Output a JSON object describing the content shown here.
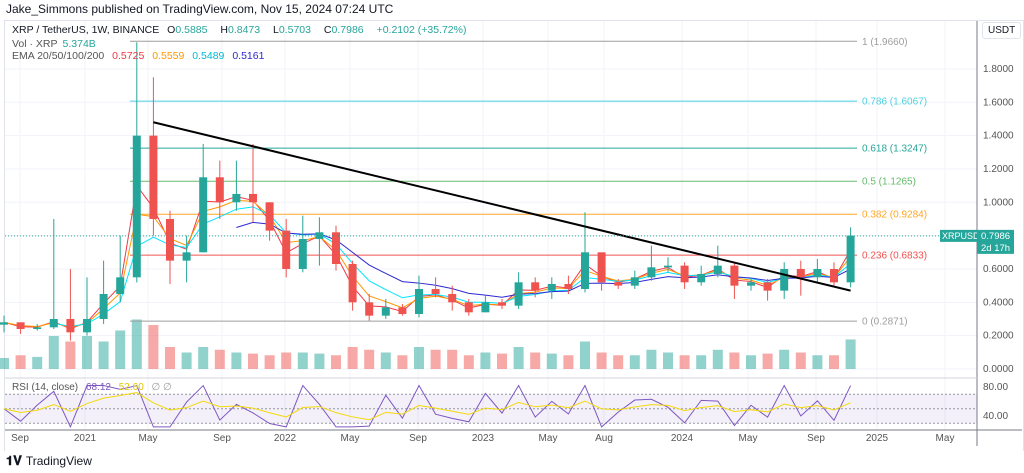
{
  "header": {
    "published": "Jake_Simmons published on TradingView.com, Nov 15, 2024 07:24 UTC"
  },
  "legend": {
    "symbol": "XRP / TetherUS, 1W, BINANCE",
    "o_label": "O",
    "o": "0.5885",
    "h_label": "H",
    "h": "0.8473",
    "l_label": "L",
    "l": "0.5703",
    "c_label": "C",
    "c": "0.7986",
    "change": "+0.2102 (+35.72%)",
    "vol_label": "Vol · XRP",
    "vol": "5.374B",
    "ema_label": "EMA 20/50/100/200",
    "ema": [
      "0.5725",
      "0.5559",
      "0.5489",
      "0.5161"
    ],
    "rsi_label": "RSI (14, close)",
    "rsi": "68.12",
    "rsi_ma": "52.60",
    "rsi_extra": "∅ ∅"
  },
  "colors": {
    "up": "#26a69a",
    "down": "#ef5350",
    "ema": [
      "#f23645",
      "#ff9800",
      "#00e5ff",
      "#2e28d0"
    ],
    "rsi": "#7e57c2",
    "rsi_ma": "#f5d90a"
  },
  "price_axis": {
    "unit": "USDT",
    "ticks": [
      "1.8000",
      "1.6000",
      "1.4000",
      "1.2000",
      "1.0000",
      "0.6000",
      "0.4000",
      "0.2000",
      "0.0000"
    ],
    "last_symbol": "XRPUSDT",
    "last_price": "0.7986",
    "countdown": "2d 17h"
  },
  "rsi_axis": {
    "ticks": [
      "80.00",
      "40.00"
    ]
  },
  "time_axis": [
    "Sep",
    "2021",
    "May",
    "Sep",
    "2022",
    "May",
    "Sep",
    "2023",
    "May",
    "Aug",
    "2024",
    "May",
    "Sep",
    "2025",
    "May"
  ],
  "footer": {
    "brand": "TradingView"
  },
  "chart_data": {
    "type": "candlestick",
    "interval": "1W (approximated monthly)",
    "ylim": [
      0,
      2.0
    ],
    "months": [
      "2020-08",
      "2020-09",
      "2020-10",
      "2020-11",
      "2020-12",
      "2021-01",
      "2021-02",
      "2021-03",
      "2021-04",
      "2021-05",
      "2021-06",
      "2021-07",
      "2021-08",
      "2021-09",
      "2021-10",
      "2021-11",
      "2021-12",
      "2022-01",
      "2022-02",
      "2022-03",
      "2022-04",
      "2022-05",
      "2022-06",
      "2022-07",
      "2022-08",
      "2022-09",
      "2022-10",
      "2022-11",
      "2022-12",
      "2023-01",
      "2023-02",
      "2023-03",
      "2023-04",
      "2023-05",
      "2023-06",
      "2023-07",
      "2023-08",
      "2023-09",
      "2023-10",
      "2023-11",
      "2023-12",
      "2024-01",
      "2024-02",
      "2024-03",
      "2024-04",
      "2024-05",
      "2024-06",
      "2024-07",
      "2024-08",
      "2024-09",
      "2024-10",
      "2024-11"
    ],
    "close": [
      0.28,
      0.24,
      0.25,
      0.3,
      0.22,
      0.3,
      0.45,
      0.55,
      1.4,
      0.9,
      0.65,
      0.7,
      1.15,
      1.0,
      1.05,
      1.0,
      0.83,
      0.6,
      0.78,
      0.82,
      0.63,
      0.4,
      0.32,
      0.37,
      0.33,
      0.48,
      0.45,
      0.4,
      0.34,
      0.4,
      0.38,
      0.52,
      0.47,
      0.51,
      0.48,
      0.7,
      0.52,
      0.5,
      0.55,
      0.61,
      0.62,
      0.52,
      0.57,
      0.62,
      0.5,
      0.52,
      0.47,
      0.6,
      0.55,
      0.6,
      0.52,
      0.8
    ],
    "high": [
      0.32,
      0.28,
      0.27,
      0.9,
      0.6,
      0.55,
      0.65,
      0.8,
      1.96,
      1.75,
      0.95,
      0.8,
      1.35,
      1.25,
      1.25,
      1.35,
      1.0,
      0.9,
      0.92,
      0.91,
      0.86,
      0.65,
      0.45,
      0.42,
      0.39,
      0.56,
      0.55,
      0.5,
      0.42,
      0.44,
      0.42,
      0.58,
      0.55,
      0.55,
      0.56,
      0.94,
      0.66,
      0.54,
      0.59,
      0.74,
      0.67,
      0.64,
      0.62,
      0.74,
      0.64,
      0.55,
      0.54,
      0.64,
      0.65,
      0.66,
      0.64,
      0.85
    ],
    "low": [
      0.22,
      0.21,
      0.23,
      0.24,
      0.17,
      0.2,
      0.27,
      0.4,
      0.52,
      0.8,
      0.51,
      0.52,
      0.7,
      0.9,
      0.95,
      0.88,
      0.77,
      0.55,
      0.58,
      0.62,
      0.59,
      0.35,
      0.29,
      0.3,
      0.32,
      0.31,
      0.43,
      0.35,
      0.32,
      0.34,
      0.36,
      0.36,
      0.43,
      0.42,
      0.45,
      0.46,
      0.47,
      0.48,
      0.48,
      0.53,
      0.58,
      0.48,
      0.5,
      0.55,
      0.42,
      0.47,
      0.41,
      0.42,
      0.44,
      0.52,
      0.5,
      0.49
    ],
    "volume_billion": [
      2,
      2.5,
      2.2,
      6,
      5,
      6,
      5,
      7,
      9,
      8,
      4,
      3,
      4,
      3.5,
      3,
      2.8,
      2.5,
      3,
      3,
      2.8,
      2.5,
      4,
      3.5,
      3,
      2.5,
      4,
      3.5,
      3.5,
      2.5,
      3,
      2.8,
      4,
      3,
      2.8,
      2.5,
      5,
      3,
      2.5,
      2.5,
      3.5,
      3,
      2.5,
      2.5,
      3.5,
      3,
      2.5,
      2.8,
      3.5,
      3,
      2.5,
      2.5,
      5.374
    ],
    "fib_levels": [
      {
        "label": "1 (1.9660)",
        "value": 1.966,
        "color": "#9e9e9e"
      },
      {
        "label": "0.786 (1.6067)",
        "value": 1.6067,
        "color": "#4dd0e1"
      },
      {
        "label": "0.618 (1.3247)",
        "value": 1.3247,
        "color": "#26a69a"
      },
      {
        "label": "0.5 (1.1265)",
        "value": 1.1265,
        "color": "#66bb6a"
      },
      {
        "label": "0.382 (0.9284)",
        "value": 0.9284,
        "color": "#ffa726"
      },
      {
        "label": "0.236 (0.6833)",
        "value": 0.6833,
        "color": "#ef5350"
      },
      {
        "label": "0 (0.2871)",
        "value": 0.2871,
        "color": "#9e9e9e"
      }
    ],
    "trendline": {
      "from": {
        "month": "2021-05",
        "value": 1.48
      },
      "to": {
        "month": "2024-11",
        "value": 0.47
      }
    },
    "rsi_levels": [
      70,
      50,
      30
    ]
  }
}
